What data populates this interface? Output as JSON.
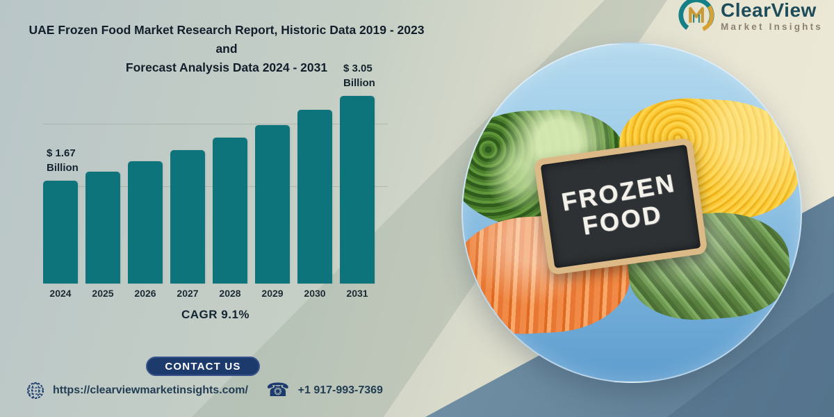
{
  "banner": {
    "title": "UAE Frozen Food Market Research Report, Historic Data 2019 - 2023 and\nForecast Analysis Data 2024 - 2031"
  },
  "logo": {
    "brand": "ClearView",
    "tagline": "Market Insights"
  },
  "chart_data": {
    "type": "bar",
    "categories": [
      "2024",
      "2025",
      "2026",
      "2027",
      "2028",
      "2029",
      "2030",
      "2031"
    ],
    "values": [
      1.67,
      1.82,
      1.99,
      2.17,
      2.37,
      2.58,
      2.82,
      3.05
    ],
    "unit": "USD Billion",
    "bar_color": "#0e747c",
    "ylim": [
      0,
      3.2
    ],
    "grid": "two faint horizontal gridlines",
    "legend": "none",
    "xlabel": "",
    "ylabel": "",
    "annotations": [
      {
        "index": 0,
        "line1": "$ 1.67",
        "line2": "Billion"
      },
      {
        "index": 7,
        "line1": "$ 3.05",
        "line2": "Billion"
      }
    ],
    "caption": "CAGR 9.1%",
    "values_note": "Only 2024 ($1.67 Billion) and 2031 ($3.05 Billion) are labeled on the chart; intermediate values estimated from bar heights consistent with 9.1% CAGR"
  },
  "photo": {
    "board_text_line1": "FROZEN",
    "board_text_line2": "FOOD",
    "contents": [
      "broccoli",
      "sweet corn",
      "carrot sticks",
      "green beans"
    ]
  },
  "cta": {
    "label": "CONTACT US"
  },
  "footer": {
    "website": "https://clearviewmarketinsights.com/",
    "phone": "+1 917-993-7369"
  },
  "colors": {
    "accent_teal": "#0e747c",
    "button_navy": "#1d3a6d",
    "logo_navy": "#1d4c5a",
    "logo_taupe": "#8d8174",
    "logo_gold": "#d7a233",
    "slate_corner": "#5d7d95"
  }
}
